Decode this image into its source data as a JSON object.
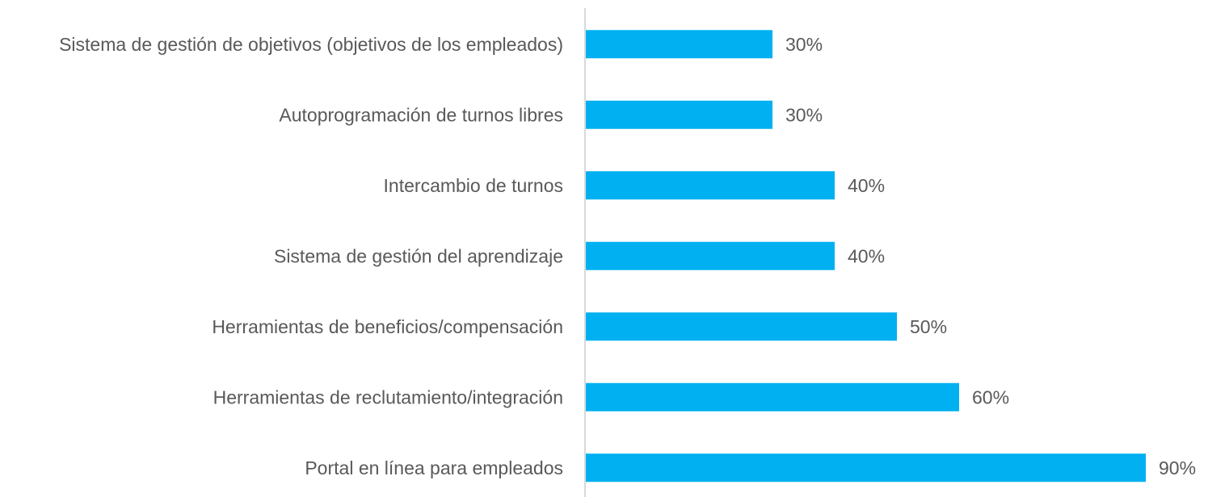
{
  "chart_data": {
    "type": "bar",
    "orientation": "horizontal",
    "categories": [
      "Sistema de gestión de objetivos (objetivos de los empleados)",
      "Autoprogramación de turnos libres",
      "Intercambio de turnos",
      "Sistema de gestión del aprendizaje",
      "Herramientas de beneficios/compensación",
      "Herramientas de reclutamiento/integración",
      "Portal en línea para empleados"
    ],
    "values": [
      30,
      30,
      40,
      40,
      50,
      60,
      90
    ],
    "value_labels": [
      "30%",
      "30%",
      "40%",
      "40%",
      "50%",
      "60%",
      "90%"
    ],
    "color": "#00b0f0",
    "xlim": [
      0,
      100
    ]
  }
}
